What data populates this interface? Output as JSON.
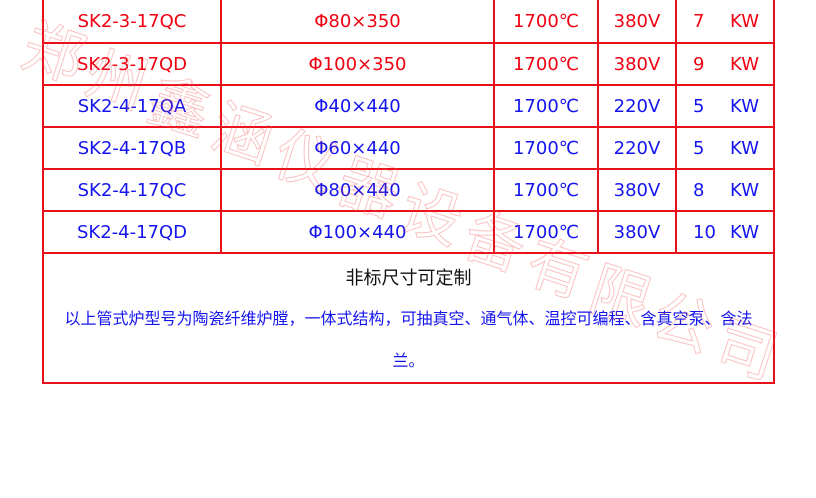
{
  "rows": [
    {
      "model": "SK2-3-17QC",
      "size": "Φ80×350",
      "temp": "1700℃",
      "voltage": "380V",
      "power": "7",
      "unit": "KW",
      "color": "red"
    },
    {
      "model": "SK2-3-17QD",
      "size": "Φ100×350",
      "temp": "1700℃",
      "voltage": "380V",
      "power": "9",
      "unit": "KW",
      "color": "red"
    },
    {
      "model": "SK2-4-17QA",
      "size": "Φ40×440",
      "temp": "1700℃",
      "voltage": "220V",
      "power": "5",
      "unit": "KW",
      "color": "blue"
    },
    {
      "model": "SK2-4-17QB",
      "size": "Φ60×440",
      "temp": "1700℃",
      "voltage": "220V",
      "power": "5",
      "unit": "KW",
      "color": "blue"
    },
    {
      "model": "SK2-4-17QC",
      "size": "Φ80×440",
      "temp": "1700℃",
      "voltage": "380V",
      "power": "8",
      "unit": "KW",
      "color": "blue"
    },
    {
      "model": "SK2-4-17QD",
      "size": "Φ100×440",
      "temp": "1700℃",
      "voltage": "380V",
      "power": "10",
      "unit": "KW",
      "color": "blue"
    }
  ],
  "note": {
    "title": "非标尺寸可定制",
    "body": "以上管式炉型号为陶瓷纤维炉膛，一体式结构，可抽真空、通气体、温控可编程、含真空泵、含法兰。"
  },
  "watermark": "郑州鑫涵仪器设备有限公司",
  "colors": {
    "border": "#e8101a",
    "red_text": "#f00010",
    "blue_text": "#1414ee"
  }
}
